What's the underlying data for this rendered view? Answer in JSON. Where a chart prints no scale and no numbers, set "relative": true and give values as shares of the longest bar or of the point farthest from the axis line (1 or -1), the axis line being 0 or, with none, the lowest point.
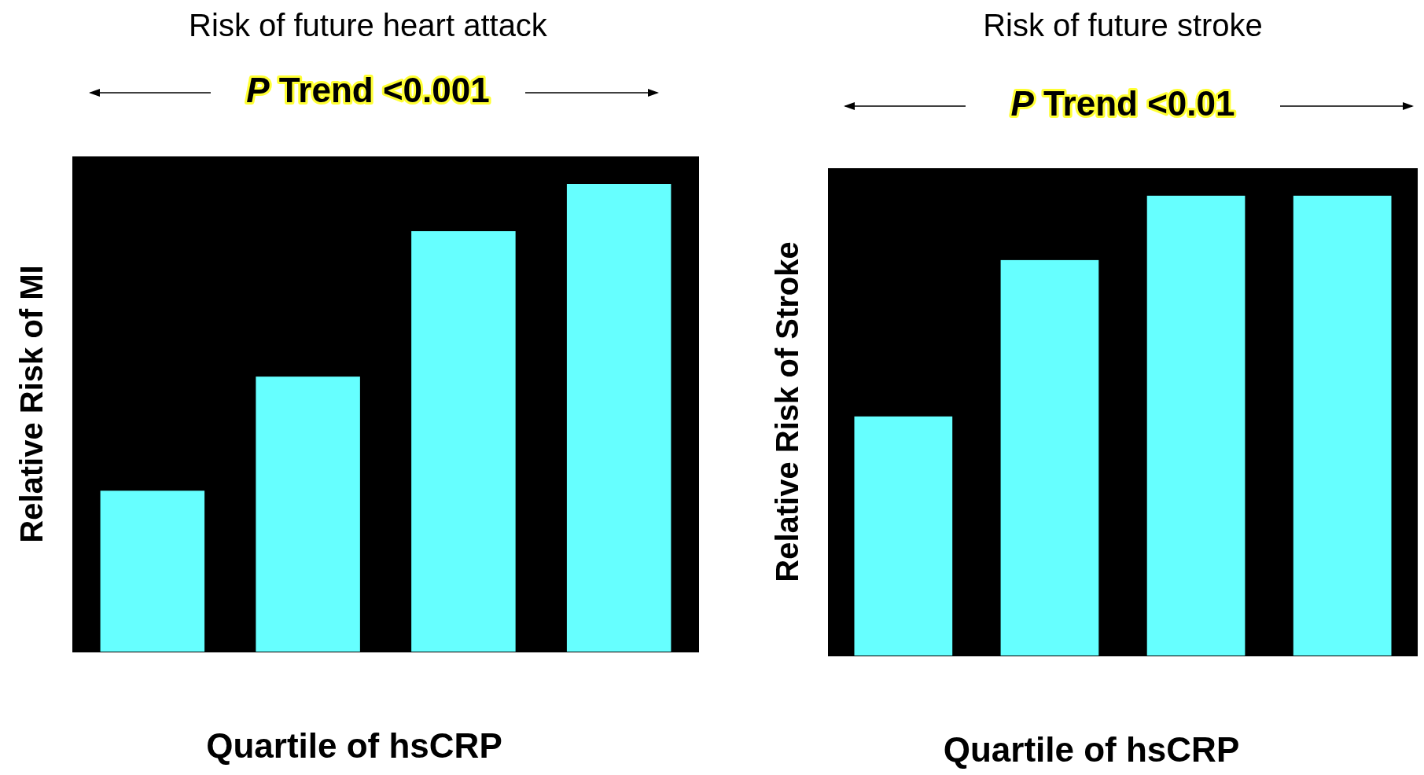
{
  "chart_data": [
    {
      "type": "bar",
      "title": "Risk of future heart attack",
      "annotations": [
        "P Trend <0.001"
      ],
      "xlabel": "Quartile of hsCRP",
      "ylabel": "Relative Risk of MI",
      "categories": [
        null,
        null,
        null,
        null
      ],
      "values": [
        0.344,
        0.588,
        0.899,
        1
      ],
      "color": "#66ffff",
      "relative": true
    },
    {
      "type": "bar",
      "title": "Risk of future stroke",
      "annotations": [
        "P Trend <0.01"
      ],
      "xlabel": "Quartile of hsCRP",
      "ylabel": "Relative Risk of Stroke",
      "categories": [
        null,
        null,
        null,
        null
      ],
      "values": [
        0.52,
        0.86,
        1,
        1
      ],
      "color": "#66ffff",
      "relative": true
    }
  ]
}
